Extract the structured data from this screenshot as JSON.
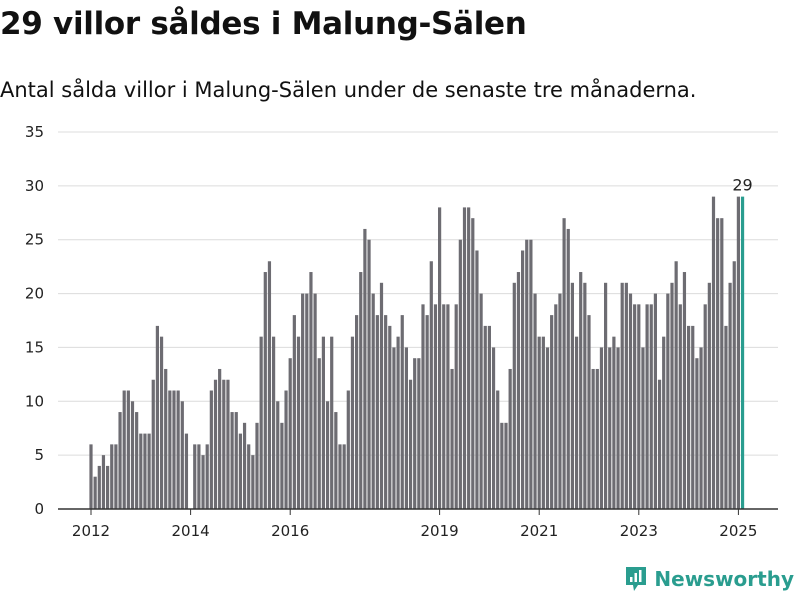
{
  "title": "29 villor såldes i Malung-Sälen",
  "subtitle": "Antal sålda villor i Malung-Sälen under de senaste tre månaderna.",
  "brand": {
    "name": "Newsworthy",
    "icon": "newsworthy-logo-icon",
    "color": "#2a9d8f"
  },
  "chart_data": {
    "type": "bar",
    "title": "29 villor såldes i Malung-Sälen",
    "subtitle": "Antal sålda villor i Malung-Sälen under de senaste tre månaderna.",
    "x_start": "2012-01",
    "x_ticks": [
      "2012",
      "2014",
      "2016",
      "2019",
      "2021",
      "2023",
      "2025"
    ],
    "y_ticks": [
      0,
      5,
      10,
      15,
      20,
      25,
      30,
      35
    ],
    "ylim": [
      0,
      35
    ],
    "grid": true,
    "bar_color": "#6d6c72",
    "highlight_color": "#2a9d8f",
    "highlight_label": "29",
    "values": [
      6,
      3,
      4,
      5,
      4,
      6,
      6,
      9,
      11,
      11,
      10,
      9,
      7,
      7,
      7,
      12,
      17,
      16,
      13,
      11,
      11,
      11,
      10,
      7,
      0,
      6,
      6,
      5,
      6,
      11,
      12,
      13,
      12,
      12,
      9,
      9,
      7,
      8,
      6,
      5,
      8,
      16,
      22,
      23,
      16,
      10,
      8,
      11,
      14,
      18,
      16,
      20,
      20,
      22,
      20,
      14,
      16,
      10,
      16,
      9,
      6,
      6,
      11,
      16,
      18,
      22,
      26,
      25,
      20,
      18,
      21,
      18,
      17,
      15,
      16,
      18,
      15,
      12,
      14,
      14,
      19,
      18,
      23,
      19,
      28,
      19,
      19,
      13,
      19,
      25,
      28,
      28,
      27,
      24,
      20,
      17,
      17,
      15,
      11,
      8,
      8,
      13,
      21,
      22,
      24,
      25,
      25,
      20,
      16,
      16,
      15,
      18,
      19,
      20,
      27,
      26,
      21,
      16,
      22,
      21,
      18,
      13,
      13,
      15,
      21,
      15,
      16,
      15,
      21,
      21,
      20,
      19,
      19,
      15,
      19,
      19,
      20,
      12,
      16,
      20,
      21,
      23,
      19,
      22,
      17,
      17,
      14,
      15,
      19,
      21,
      29,
      27,
      27,
      17,
      21,
      23,
      29,
      29
    ]
  }
}
